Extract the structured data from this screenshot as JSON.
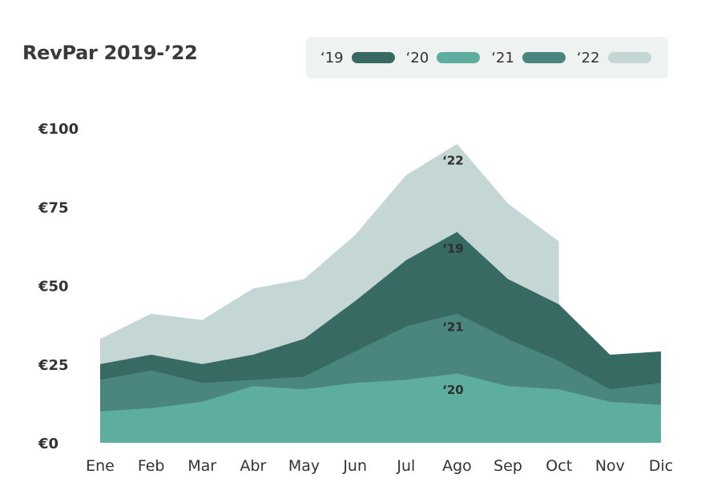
{
  "colors": {
    "s19": "#366a63",
    "s20": "#5eae9f",
    "s21": "#4a867e",
    "s22": "#c4d7d4",
    "text": "#333333"
  },
  "chart_data": {
    "type": "area",
    "title": "RevPar 2019-’22",
    "categories": [
      "Ene",
      "Feb",
      "Mar",
      "Abr",
      "May",
      "Jun",
      "Jul",
      "Ago",
      "Sep",
      "Oct",
      "Nov",
      "Dic"
    ],
    "y_ticks": [
      "€0",
      "€25",
      "€50",
      "€75",
      "€100"
    ],
    "ylim": [
      0,
      100
    ],
    "grid": false,
    "legend_position": "top-right",
    "series": [
      {
        "name": "‘19",
        "key": "s19",
        "values": [
          25,
          28,
          25,
          28,
          33,
          45,
          58,
          67,
          52,
          44,
          28,
          29
        ]
      },
      {
        "name": "‘20",
        "key": "s20",
        "values": [
          10,
          11,
          13,
          18,
          17,
          19,
          20,
          22,
          18,
          17,
          13,
          12
        ]
      },
      {
        "name": "‘21",
        "key": "s21",
        "values": [
          20,
          23,
          19,
          20,
          21,
          29,
          37,
          41,
          33,
          26,
          17,
          19
        ]
      },
      {
        "name": "‘22",
        "key": "s22",
        "values": [
          33,
          41,
          39,
          49,
          52,
          66,
          85,
          95,
          76,
          64,
          null,
          null
        ]
      }
    ],
    "annotations": [
      {
        "label": "‘22",
        "category": "Ago",
        "value": 90
      },
      {
        "label": "‘19",
        "category": "Ago",
        "value": 62
      },
      {
        "label": "‘21",
        "category": "Ago",
        "value": 37
      },
      {
        "label": "‘20",
        "category": "Ago",
        "value": 17
      }
    ]
  }
}
